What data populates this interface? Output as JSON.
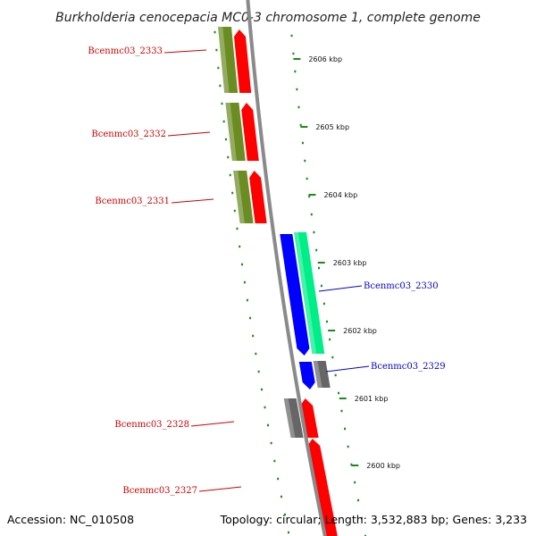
{
  "title": "Burkholderia cenocepacia MC0-3 chromosome 1, complete genome",
  "footer": {
    "accession": "Accession: NC_010508",
    "topology": "Topology: circular; Length: 3,532,883 bp; Genes: 3,233"
  },
  "colors": {
    "backbone": "#8a8a8a",
    "tick": "#1a8a1a",
    "label_left": "#cc0000",
    "label_right": "#0000cc",
    "olive": "#6b8c23",
    "red": "#ff0000",
    "blue": "#0000ff",
    "aqua": "#00ee88",
    "gray": "#666666"
  },
  "ticks": [
    {
      "label": "2606 kbp"
    },
    {
      "label": "2605 kbp"
    },
    {
      "label": "2604 kbp"
    },
    {
      "label": "2603 kbp"
    },
    {
      "label": "2602 kbp"
    },
    {
      "label": "2601 kbp"
    },
    {
      "label": "2600 kbp"
    }
  ],
  "genes": [
    {
      "name": "Bcenmc03_2333",
      "side": "left"
    },
    {
      "name": "Bcenmc03_2332",
      "side": "left"
    },
    {
      "name": "Bcenmc03_2331",
      "side": "left"
    },
    {
      "name": "Bcenmc03_2330",
      "side": "right"
    },
    {
      "name": "Bcenmc03_2329",
      "side": "right"
    },
    {
      "name": "Bcenmc03_2328",
      "side": "left"
    },
    {
      "name": "Bcenmc03_2327",
      "side": "left"
    }
  ]
}
